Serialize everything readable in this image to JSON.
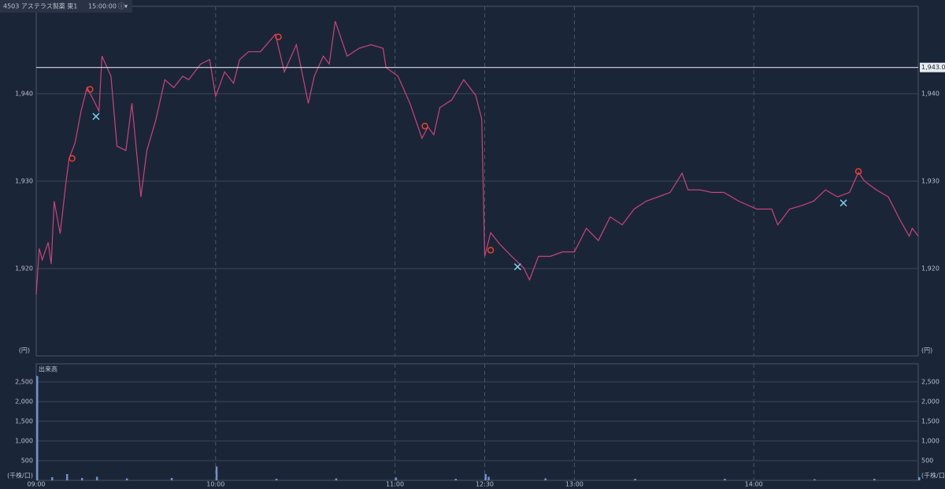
{
  "header": {
    "title": "4503 アステラス製薬 東1",
    "time": "15:00:00"
  },
  "chart_data": [
    {
      "type": "line",
      "color": "#c8457a",
      "unit_label": "(円)",
      "x": [
        "09:00",
        "09:01",
        "09:02",
        "09:04",
        "09:05",
        "09:06",
        "09:08",
        "09:10",
        "09:11",
        "09:13",
        "09:15",
        "09:17",
        "09:19",
        "09:21",
        "09:22",
        "09:25",
        "09:27",
        "09:30",
        "09:32",
        "09:35",
        "09:37",
        "09:40",
        "09:43",
        "09:46",
        "09:49",
        "09:51",
        "09:55",
        "09:58",
        "10:00",
        "10:03",
        "10:06",
        "10:08",
        "10:11",
        "10:15",
        "10:17",
        "10:20",
        "10:23",
        "10:27",
        "10:31",
        "10:33",
        "10:36",
        "10:38",
        "10:40",
        "10:44",
        "10:48",
        "10:52",
        "10:56",
        "10:57",
        "11:01",
        "11:05",
        "11:09",
        "11:11",
        "11:13",
        "11:15",
        "11:19",
        "11:23",
        "11:27",
        "11:29",
        "12:30",
        "12:32",
        "12:35",
        "12:39",
        "12:43",
        "12:45",
        "12:48",
        "12:52",
        "12:56",
        "13:00",
        "13:04",
        "13:08",
        "13:12",
        "13:16",
        "13:20",
        "13:24",
        "13:28",
        "13:32",
        "13:36",
        "13:38",
        "13:42",
        "13:46",
        "13:50",
        "13:55",
        "14:01",
        "14:06",
        "14:08",
        "14:12",
        "14:16",
        "14:20",
        "14:24",
        "14:28",
        "14:32",
        "14:35",
        "14:37",
        "14:41",
        "14:45",
        "14:49",
        "14:52",
        "14:53",
        "14:55"
      ],
      "values": [
        1917,
        1922.3,
        1921,
        1923,
        1920.5,
        1927.7,
        1924,
        1930,
        1932.6,
        1934.4,
        1938,
        1940.7,
        1939.4,
        1938,
        1944.3,
        1942,
        1934,
        1933.5,
        1938.9,
        1928.2,
        1933.5,
        1937,
        1941.6,
        1940.7,
        1942,
        1941.6,
        1943.4,
        1943.9,
        1939.7,
        1942.5,
        1941.2,
        1943.9,
        1944.8,
        1944.8,
        1945.6,
        1946.8,
        1942.5,
        1945.6,
        1938.9,
        1942,
        1944.3,
        1943.4,
        1948.3,
        1944.3,
        1945.2,
        1945.6,
        1945.2,
        1943,
        1942,
        1938.9,
        1934.9,
        1936.2,
        1935.3,
        1938.4,
        1939.3,
        1941.6,
        1939.8,
        1937.1,
        1921.4,
        1924.1,
        1922.8,
        1921.4,
        1920.1,
        1918.7,
        1921.4,
        1921.4,
        1921.9,
        1921.9,
        1924.6,
        1923.2,
        1925.9,
        1925,
        1926.8,
        1927.7,
        1928.2,
        1928.7,
        1930.9,
        1929,
        1929,
        1928.7,
        1928.7,
        1927.7,
        1926.8,
        1926.8,
        1925,
        1926.8,
        1927.2,
        1927.7,
        1929,
        1928.2,
        1928.7,
        1931,
        1930,
        1929,
        1928.2,
        1925.5,
        1923.7,
        1924.6,
        1923.7
      ],
      "xlim": [
        "09:00",
        "14:55"
      ],
      "xticks": [
        "09:00",
        "10:00",
        "11:00",
        "12:30",
        "13:00",
        "14:00"
      ],
      "ylim": [
        1910,
        1950
      ],
      "yticks": [
        {
          "value": 1920,
          "label": "1,920"
        },
        {
          "value": 1930,
          "label": "1,930"
        },
        {
          "value": 1940,
          "label": "1,940"
        }
      ],
      "reference_line": {
        "value": 1943,
        "label": "1,943.0"
      },
      "circle_markers": {
        "color": "#e8412c",
        "x": [
          "09:12",
          "09:18",
          "10:21",
          "11:10",
          "12:32",
          "14:35"
        ],
        "values": [
          1932.6,
          1940.5,
          1946.5,
          1936.3,
          1922.1,
          1931.1
        ]
      },
      "cross_markers": {
        "color": "#7fd3ee",
        "x": [
          "09:20",
          "12:41",
          "14:30"
        ],
        "values": [
          1937.4,
          1920.2,
          1927.5
        ]
      }
    },
    {
      "type": "bar",
      "color": "#7092c8",
      "title": "出来高",
      "unit_label": "(千株/口)",
      "x": [
        "09:00",
        "09:05",
        "09:10",
        "09:15",
        "09:20",
        "09:30",
        "09:45",
        "10:00",
        "10:20",
        "10:40",
        "11:00",
        "11:20",
        "12:30",
        "12:31",
        "12:50",
        "13:20",
        "13:50",
        "14:20",
        "14:40",
        "14:55"
      ],
      "values": [
        2650,
        80,
        160,
        60,
        90,
        50,
        60,
        350,
        40,
        50,
        70,
        40,
        160,
        90,
        50,
        40,
        40,
        30,
        40,
        80
      ],
      "xlim": [
        "09:00",
        "14:55"
      ],
      "ylim": [
        0,
        2960
      ],
      "yticks": [
        {
          "value": 500,
          "label": "500"
        },
        {
          "value": 1000,
          "label": "1,000"
        },
        {
          "value": 1500,
          "label": "1,500"
        },
        {
          "value": 2000,
          "label": "2,000"
        },
        {
          "value": 2500,
          "label": "2,500"
        }
      ]
    }
  ]
}
